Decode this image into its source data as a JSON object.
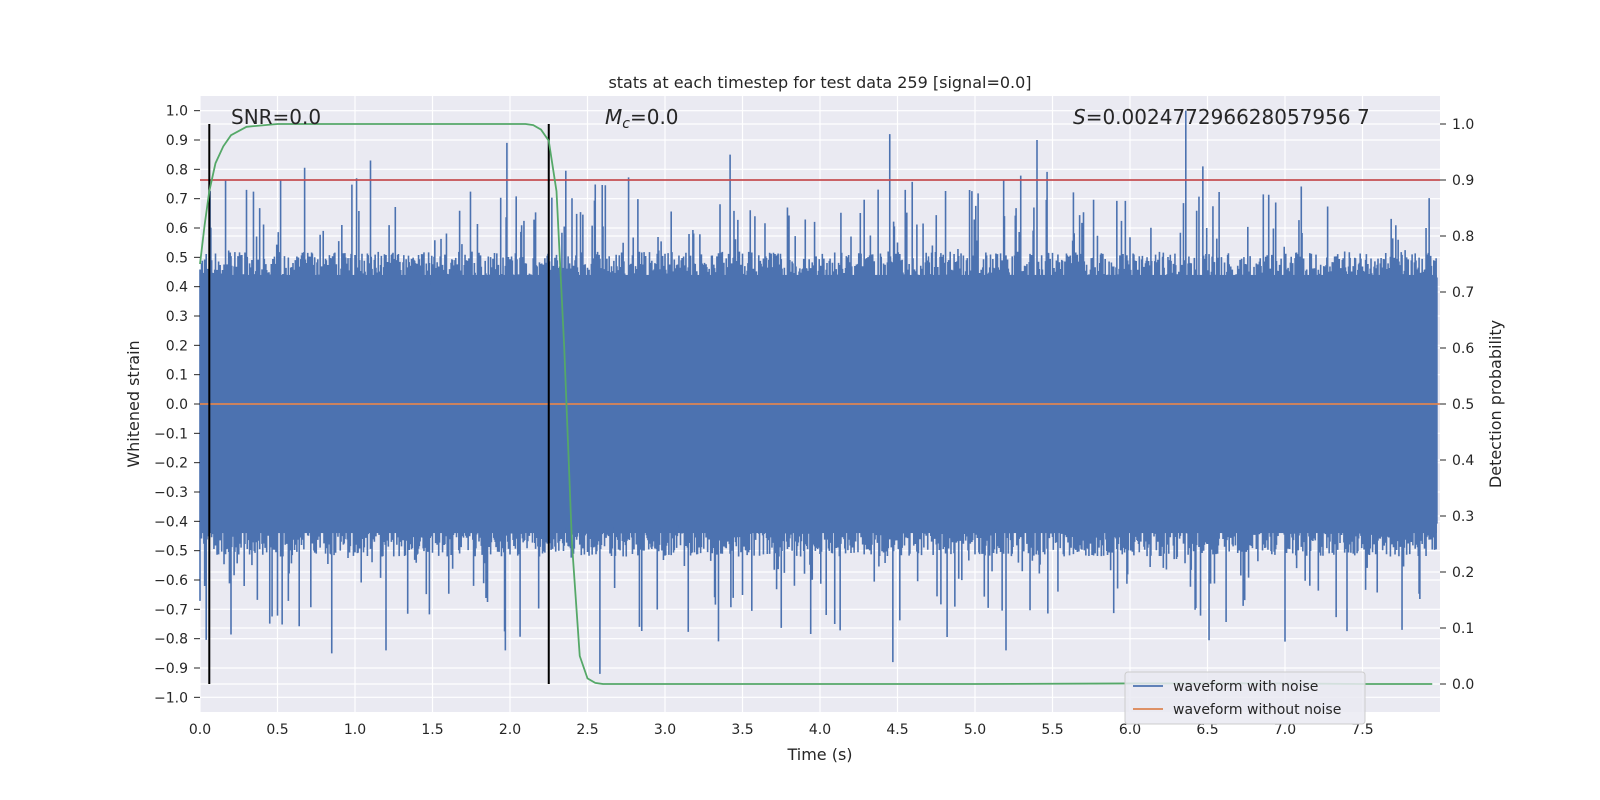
{
  "chart_data": {
    "type": "line",
    "title": "stats at each timestep for test data 259 [signal=0.0]",
    "xlabel": "Time (s)",
    "ylabel_left": "Whitened strain",
    "ylabel_right": "Detection probability",
    "xlim": [
      0.0,
      8.0
    ],
    "ylim_left": [
      -1.05,
      1.05
    ],
    "ylim_right": [
      -0.05,
      1.05
    ],
    "x_ticks": [
      0.0,
      0.5,
      1.0,
      1.5,
      2.0,
      2.5,
      3.0,
      3.5,
      4.0,
      4.5,
      5.0,
      5.5,
      6.0,
      6.5,
      7.0,
      7.5
    ],
    "x_tick_labels": [
      "0.0",
      "0.5",
      "1.0",
      "1.5",
      "2.0",
      "2.5",
      "3.0",
      "3.5",
      "4.0",
      "4.5",
      "5.0",
      "5.5",
      "6.0",
      "6.5",
      "7.0",
      "7.5"
    ],
    "y_left_ticks": [
      -1.0,
      -0.9,
      -0.8,
      -0.7,
      -0.6,
      -0.5,
      -0.4,
      -0.3,
      -0.2,
      -0.1,
      0.0,
      0.1,
      0.2,
      0.3,
      0.4,
      0.5,
      0.6,
      0.7,
      0.8,
      0.9,
      1.0
    ],
    "y_left_tick_labels": [
      "−1.0",
      "−0.9",
      "−0.8",
      "−0.7",
      "−0.6",
      "−0.5",
      "−0.4",
      "−0.3",
      "−0.2",
      "−0.1",
      "0.0",
      "0.1",
      "0.2",
      "0.3",
      "0.4",
      "0.5",
      "0.6",
      "0.7",
      "0.8",
      "0.9",
      "1.0"
    ],
    "y_right_ticks": [
      0.0,
      0.1,
      0.2,
      0.3,
      0.4,
      0.5,
      0.6,
      0.7,
      0.8,
      0.9,
      1.0
    ],
    "y_right_tick_labels": [
      "0.0",
      "0.1",
      "0.2",
      "0.3",
      "0.4",
      "0.5",
      "0.6",
      "0.7",
      "0.8",
      "0.9",
      "1.0"
    ],
    "grid": true,
    "annotations": {
      "snr": "SNR=0.0",
      "mc_symbol": "M",
      "mc_subscript": "c",
      "mc_value": "=0.0",
      "s_symbol": "S",
      "s_value": "=0.002477296628057956 7"
    },
    "series": [
      {
        "name": "waveform with noise",
        "axis": "left",
        "color": "#4c72b0",
        "description_values": {
          "typical_band": [
            -0.45,
            0.45
          ],
          "notable_peaks": [
            {
              "x": 0.3,
              "y": 0.73
            },
            {
              "x": 1.1,
              "y": 0.83
            },
            {
              "x": 1.98,
              "y": 0.89
            },
            {
              "x": 3.42,
              "y": 0.85
            },
            {
              "x": 4.45,
              "y": 0.92
            },
            {
              "x": 5.4,
              "y": 0.9
            },
            {
              "x": 6.36,
              "y": 1.0
            },
            {
              "x": 6.47,
              "y": 0.81
            }
          ],
          "notable_troughs": [
            {
              "x": 0.85,
              "y": -0.85
            },
            {
              "x": 1.2,
              "y": -0.84
            },
            {
              "x": 1.97,
              "y": -0.84
            },
            {
              "x": 2.58,
              "y": -0.92
            },
            {
              "x": 4.47,
              "y": -0.88
            },
            {
              "x": 5.2,
              "y": -0.84
            },
            {
              "x": 7.0,
              "y": -0.81
            }
          ]
        }
      },
      {
        "name": "waveform without noise",
        "axis": "left",
        "color": "#dd8452",
        "x": [
          0.0,
          8.0
        ],
        "y": [
          0.0,
          0.0
        ]
      },
      {
        "name": "",
        "axis": "right",
        "color": "#55a868",
        "x": [
          0.0,
          0.03,
          0.06,
          0.1,
          0.15,
          0.2,
          0.3,
          0.5,
          1.0,
          1.5,
          2.0,
          2.1,
          2.15,
          2.2,
          2.25,
          2.3,
          2.35,
          2.4,
          2.45,
          2.5,
          2.55,
          2.6,
          3.0,
          4.0,
          5.0,
          6.0,
          6.5,
          7.0,
          7.5,
          7.95
        ],
        "y": [
          0.75,
          0.82,
          0.88,
          0.93,
          0.96,
          0.98,
          0.995,
          1.0,
          1.0,
          1.0,
          1.0,
          1.0,
          0.998,
          0.99,
          0.97,
          0.88,
          0.6,
          0.25,
          0.05,
          0.01,
          0.002,
          0.0,
          0.0,
          0.0,
          0.0,
          0.001,
          0.001,
          0.001,
          0.0,
          0.0
        ]
      }
    ],
    "threshold_line": {
      "axis": "right",
      "value": 0.9,
      "color": "#c44e52"
    },
    "vertical_lines": [
      0.06,
      2.25
    ],
    "legend": {
      "placement": "lower-right",
      "entries": [
        "waveform with noise",
        "waveform without noise"
      ]
    }
  }
}
